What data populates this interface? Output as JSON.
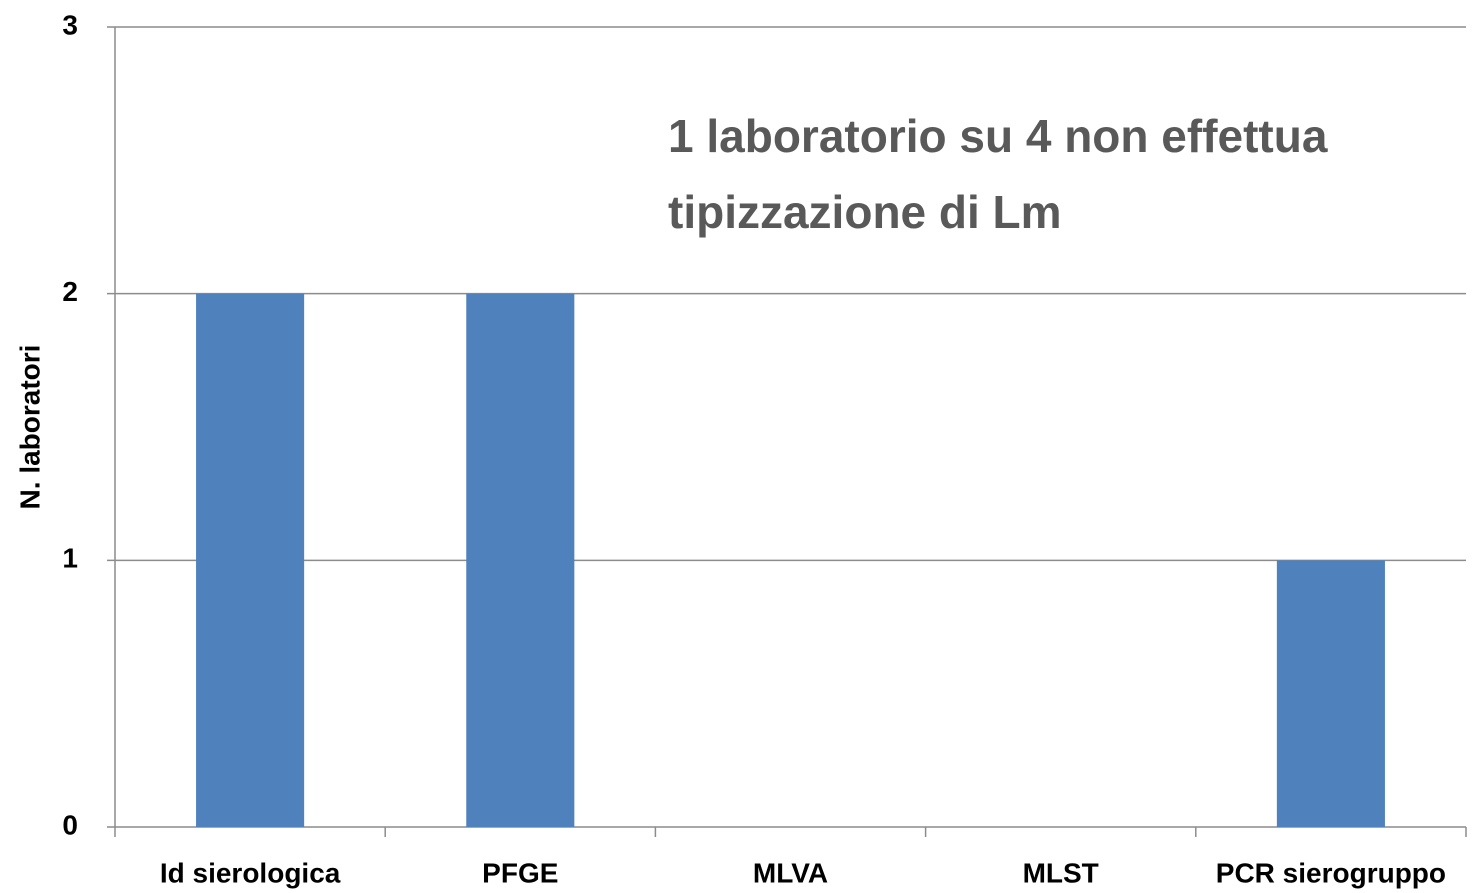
{
  "chart_data": {
    "type": "bar",
    "y_label": "N. laboratori",
    "annotation": [
      "1 laboratorio su 4 non effettua",
      "tipizzazione di Lm"
    ],
    "categories": [
      "Id sierologica",
      "PFGE",
      "MLVA",
      "MLST",
      "PCR sierogruppo"
    ],
    "values": [
      2,
      2,
      0,
      0,
      1
    ],
    "color": "#4f81bd",
    "ylim": [
      0,
      3
    ],
    "yticks": [
      0,
      1,
      2,
      3
    ],
    "grid": true
  }
}
